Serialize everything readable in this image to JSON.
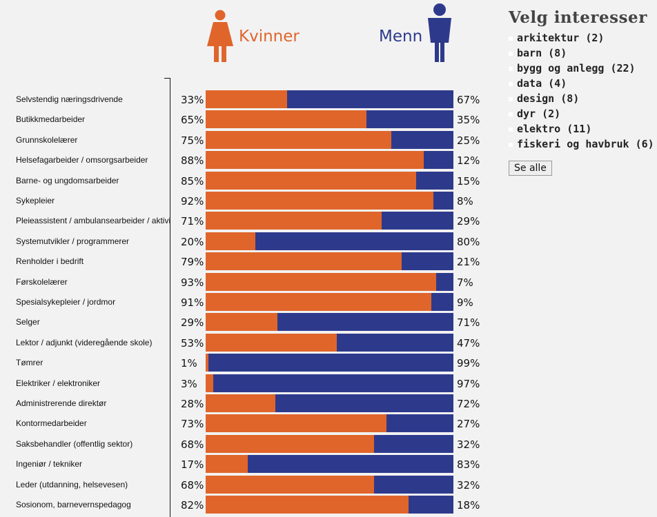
{
  "legend": {
    "women_label": "Kvinner",
    "men_label": "Menn"
  },
  "colors": {
    "women": "#e0652b",
    "men": "#2d3a8c"
  },
  "sidebar": {
    "title": "Velg interesser",
    "items": [
      {
        "label": "arkitektur (2)"
      },
      {
        "label": "barn (8)"
      },
      {
        "label": "bygg og anlegg (22)"
      },
      {
        "label": "data (4)"
      },
      {
        "label": "design (8)"
      },
      {
        "label": "dyr (2)"
      },
      {
        "label": "elektro (11)"
      },
      {
        "label": "fiskeri og havbruk (6)"
      }
    ],
    "see_all_label": "Se alle"
  },
  "chart_data": {
    "type": "bar",
    "orientation": "horizontal",
    "stacked": true,
    "normalized": true,
    "xlim": [
      0,
      100
    ],
    "unit": "%",
    "categories": [
      "Selvstendig næringsdrivende",
      "Butikkmedarbeider",
      "Grunnskolelærer",
      "Helsefagarbeider / omsorgsarbeider",
      "Barne- og ungdomsarbeider",
      "Sykepleier",
      "Pleieassistent / ambulansearbeider / aktivitør",
      "Systemutvikler / programmerer",
      "Renholder i bedrift",
      "Førskolelærer",
      "Spesialsykepleier / jordmor",
      "Selger",
      "Lektor / adjunkt (videregående skole)",
      "Tømrer",
      "Elektriker / elektroniker",
      "Administrerende direktør",
      "Kontormedarbeider",
      "Saksbehandler (offentlig sektor)",
      "Ingeniør / tekniker",
      "Leder (utdanning, helsevesen)",
      "Sosionom, barnevernspedagog"
    ],
    "series": [
      {
        "name": "Kvinner",
        "values": [
          33,
          65,
          75,
          88,
          85,
          92,
          71,
          20,
          79,
          93,
          91,
          29,
          53,
          1,
          3,
          28,
          73,
          68,
          17,
          68,
          82
        ]
      },
      {
        "name": "Menn",
        "values": [
          67,
          35,
          25,
          12,
          15,
          8,
          29,
          80,
          21,
          7,
          9,
          71,
          47,
          99,
          97,
          72,
          27,
          32,
          83,
          32,
          18
        ]
      }
    ],
    "left_labels": [
      "33%",
      "65%",
      "75%",
      "88%",
      "85%",
      "92%",
      "71%",
      "20%",
      "79%",
      "93%",
      "91%",
      "29%",
      "53%",
      "1%",
      "3%",
      "28%",
      "73%",
      "68%",
      "17%",
      "68%",
      "82%"
    ],
    "right_labels": [
      "67%",
      "35%",
      "25%",
      "12%",
      "15%",
      "8%",
      "29%",
      "80%",
      "21%",
      "7%",
      "9%",
      "71%",
      "47%",
      "99%",
      "97%",
      "72%",
      "27%",
      "32%",
      "83%",
      "32%",
      "18%"
    ]
  }
}
